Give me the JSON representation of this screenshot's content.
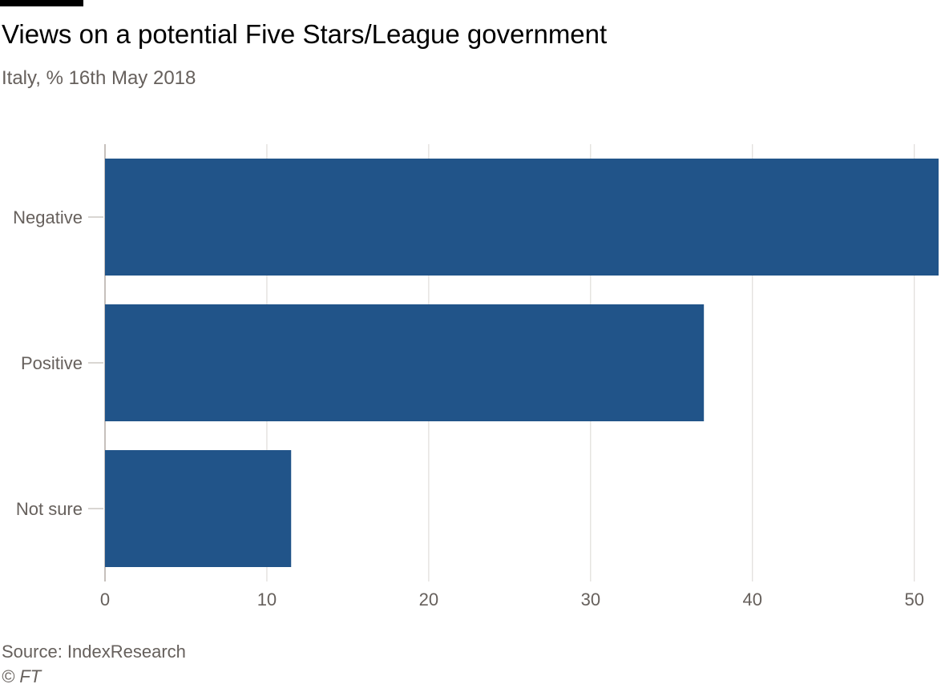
{
  "header": {
    "title": "Views on a potential Five Stars/League government",
    "subtitle": "Italy, % 16th May 2018"
  },
  "footer": {
    "source": "Source: IndexResearch",
    "copyright": "© FT"
  },
  "colors": {
    "bar": "#215489",
    "grid": "#d9d6d2",
    "axis_text": "#66605c",
    "tick_line": "#b3aca6"
  },
  "chart_data": {
    "type": "bar",
    "orientation": "horizontal",
    "title": "Views on a potential Five Stars/League government",
    "subtitle": "Italy, % 16th May 2018",
    "categories": [
      "Negative",
      "Positive",
      "Not sure"
    ],
    "values": [
      52,
      37,
      11.5
    ],
    "xlabel": "",
    "ylabel": "",
    "xlim": [
      0,
      51.5
    ],
    "xticks": [
      0,
      10,
      20,
      30,
      40,
      50
    ],
    "grid": true
  }
}
